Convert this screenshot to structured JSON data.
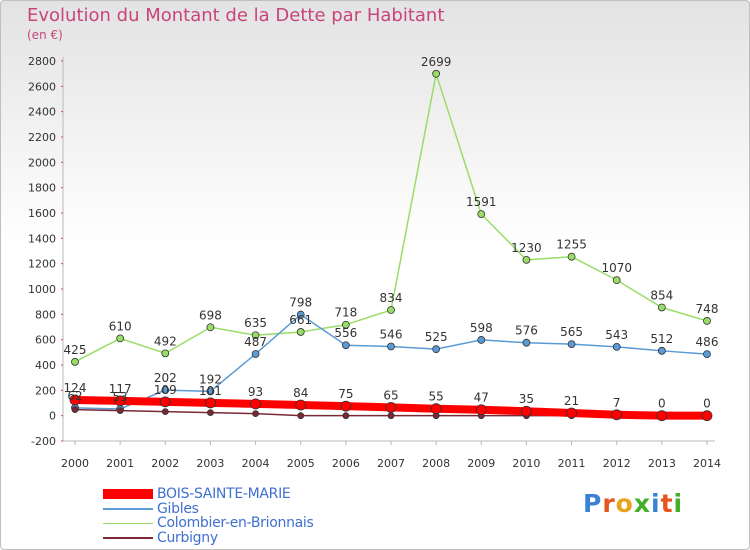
{
  "chart_data": {
    "type": "line",
    "title": "Evolution du Montant de la Dette par Habitant",
    "subtitle": "(en €)",
    "x": [
      2000,
      2001,
      2002,
      2003,
      2004,
      2005,
      2006,
      2007,
      2008,
      2009,
      2010,
      2011,
      2012,
      2013,
      2014
    ],
    "ylim": [
      -200,
      2800
    ],
    "yticks": [
      -200,
      0,
      200,
      400,
      600,
      800,
      1000,
      1200,
      1400,
      1600,
      1800,
      2000,
      2200,
      2400,
      2600,
      2800
    ],
    "grid": false,
    "legend_position": "bottom-left",
    "series": [
      {
        "name": "BOIS-SAINTE-MARIE",
        "color": "#ff0000",
        "values": [
          124,
          117,
          109,
          101,
          93,
          84,
          75,
          65,
          55,
          47,
          35,
          21,
          7,
          0,
          0
        ],
        "labels": [
          "124",
          "117",
          "109",
          "101",
          "93",
          "84",
          "75",
          "65",
          "55",
          "47",
          "35",
          "21",
          "7",
          "0",
          "0"
        ]
      },
      {
        "name": "Gibles",
        "color": "#5b9bd5",
        "values": [
          62,
          53,
          202,
          192,
          487,
          798,
          556,
          546,
          525,
          598,
          576,
          565,
          543,
          512,
          486
        ],
        "labels": [
          "62",
          "53",
          "202",
          "192",
          "487",
          "798",
          "556",
          "546",
          "525",
          "598",
          "576",
          "565",
          "543",
          "512",
          "486"
        ]
      },
      {
        "name": "Colombier-en-Brionnais",
        "color": "#99dd66",
        "values": [
          425,
          610,
          492,
          698,
          635,
          661,
          718,
          834,
          2699,
          1591,
          1230,
          1255,
          1070,
          854,
          748
        ],
        "labels": [
          "425",
          "610",
          "492",
          "698",
          "635",
          "661",
          "718",
          "834",
          "2699",
          "1591",
          "1230",
          "1255",
          "1070",
          "854",
          "748"
        ]
      },
      {
        "name": "Curbigny",
        "color": "#7a2a35",
        "values": [
          48,
          40,
          32,
          24,
          16,
          0,
          0,
          0,
          0,
          0,
          0,
          0,
          0,
          0,
          0
        ],
        "labels": []
      }
    ]
  },
  "logo": {
    "text": "Proxiti",
    "colors": [
      "#3b82d6",
      "#e8541e",
      "#e8a41e",
      "#43b02a",
      "#3b82d6",
      "#e8541e",
      "#43b02a"
    ]
  }
}
